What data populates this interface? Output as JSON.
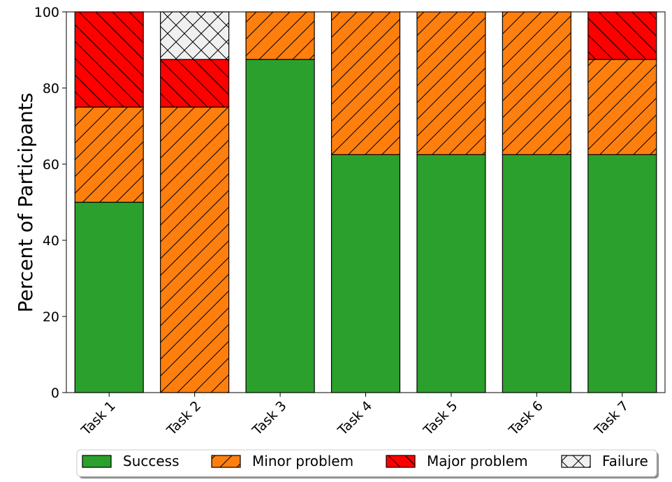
{
  "chart_data": {
    "type": "bar",
    "stacked": true,
    "categories": [
      "Task 1",
      "Task 2",
      "Task 3",
      "Task 4",
      "Task 5",
      "Task 6",
      "Task 7"
    ],
    "series": [
      {
        "name": "Success",
        "values": [
          50,
          0,
          87.5,
          62.5,
          62.5,
          62.5,
          62.5
        ],
        "color": "#2ca02c",
        "hatch": "none"
      },
      {
        "name": "Minor problem",
        "values": [
          25,
          75,
          12.5,
          37.5,
          37.5,
          37.5,
          25
        ],
        "color": "#ff7f0e",
        "hatch": "forward-diagonal"
      },
      {
        "name": "Major problem",
        "values": [
          25,
          12.5,
          0,
          0,
          0,
          0,
          12.5
        ],
        "color": "#ff0000",
        "hatch": "back-diagonal"
      },
      {
        "name": "Failure",
        "values": [
          0,
          12.5,
          0,
          0,
          0,
          0,
          0
        ],
        "color": "#f0f0f0",
        "hatch": "cross"
      }
    ],
    "ylabel": "Percent of Participants",
    "xlabel": "",
    "ylim": [
      0,
      100
    ],
    "yticks": [
      0,
      20,
      40,
      60,
      80,
      100
    ],
    "grid": false,
    "legend_position": "bottom-center"
  }
}
